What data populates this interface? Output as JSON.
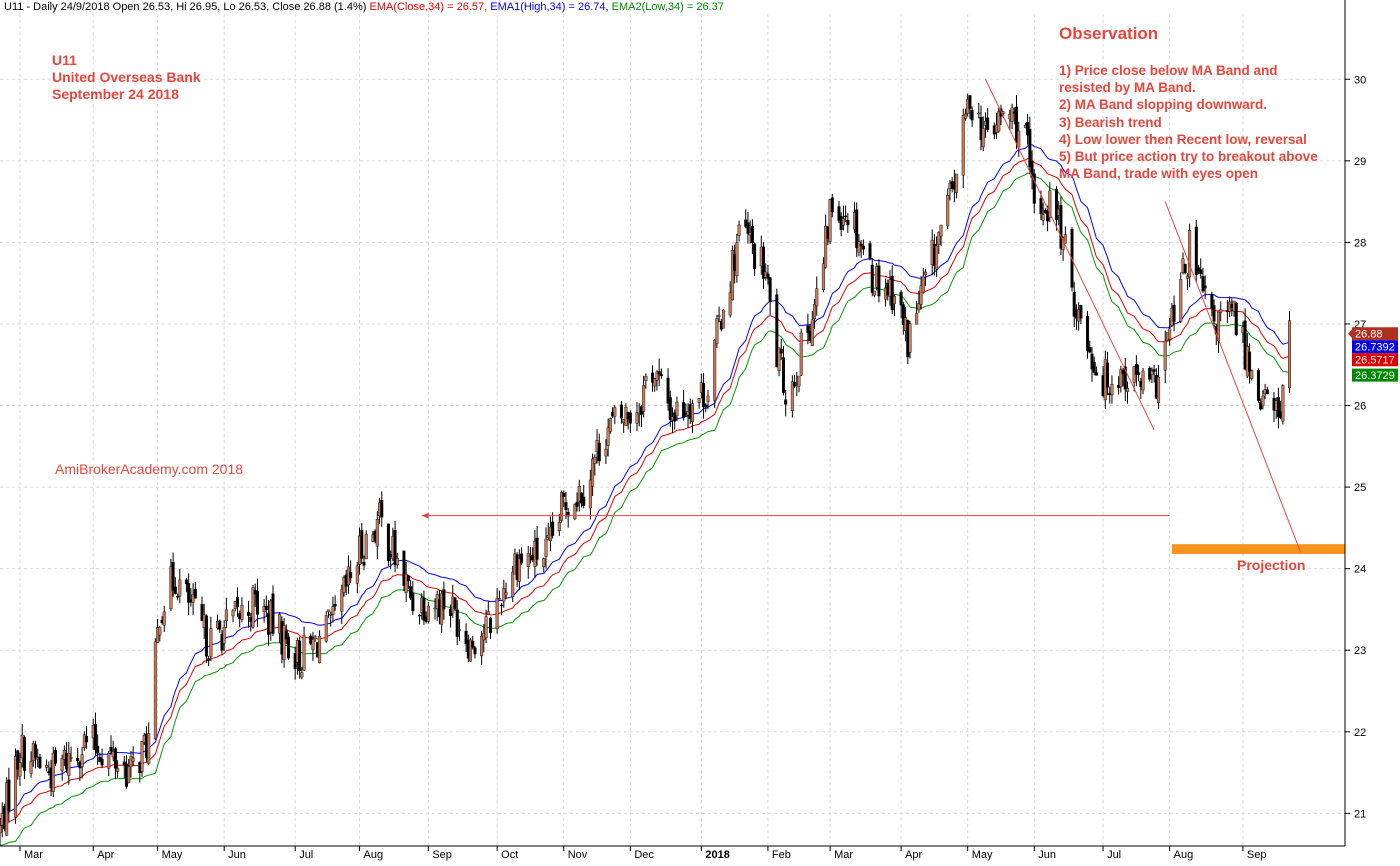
{
  "header": {
    "prefix": "U11 - Daily 24/9/2018 Open 26.53, Hi 26.95, Lo 26.53, Close 26.88 (1.4%)",
    "ema_close": "EMA(Close,34) = 26.57,",
    "ema_high": "EMA1(High,34) = 26.74,",
    "ema_low": "EMA2(Low,34) = 26.37"
  },
  "symbol": {
    "code": "U11",
    "name": "United Overseas Bank",
    "date": "September 24 2018"
  },
  "observation": {
    "title": "Observation",
    "lines": [
      "1) Price close below MA Band and",
      "resisted by MA Band.",
      "2) MA Band slopping downward.",
      "3) Bearish trend",
      "4) Low lower then Recent low, reversal",
      "5) But price action try to breakout above",
      "MA Band, trade with eyes open"
    ]
  },
  "watermark": "AmiBrokerAcademy.com  2018",
  "projection_label": "Projection",
  "colors": {
    "up_candle": "#c87a5a",
    "down_candle": "#000000",
    "ema_close": "#e00000",
    "ema_high": "#0000ff",
    "ema_low": "#009900",
    "annotation": "#e8463c",
    "projection_zone": "#f7941d",
    "grid": "#d8d8d8"
  },
  "chart_data": {
    "type": "candlestick",
    "ylim": [
      20.6,
      30.8
    ],
    "y_ticks": [
      21,
      22,
      23,
      24,
      25,
      26,
      27,
      28,
      29,
      30
    ],
    "x_range": [
      "2017-02-20",
      "2018-10-19"
    ],
    "x_ticks": [
      {
        "label": "Mar",
        "date": "2017-03-01"
      },
      {
        "label": "Apr",
        "date": "2017-04-03"
      },
      {
        "label": "May",
        "date": "2017-05-02"
      },
      {
        "label": "Jun",
        "date": "2017-06-01"
      },
      {
        "label": "Jul",
        "date": "2017-07-03"
      },
      {
        "label": "Aug",
        "date": "2017-08-01"
      },
      {
        "label": "Sep",
        "date": "2017-09-01"
      },
      {
        "label": "Oct",
        "date": "2017-10-02"
      },
      {
        "label": "Nov",
        "date": "2017-11-01"
      },
      {
        "label": "Dec",
        "date": "2017-12-01"
      },
      {
        "label": "2018",
        "date": "2018-01-02"
      },
      {
        "label": "Feb",
        "date": "2018-02-01"
      },
      {
        "label": "Mar",
        "date": "2018-03-01"
      },
      {
        "label": "Apr",
        "date": "2018-04-02"
      },
      {
        "label": "May",
        "date": "2018-05-02"
      },
      {
        "label": "Jun",
        "date": "2018-06-01"
      },
      {
        "label": "Jul",
        "date": "2018-07-02"
      },
      {
        "label": "Aug",
        "date": "2018-08-01"
      },
      {
        "label": "Sep",
        "date": "2018-09-03"
      }
    ],
    "close_path": [
      [
        "2017-02-20",
        20.8
      ],
      [
        "2017-03-01",
        21.8
      ],
      [
        "2017-03-15",
        21.5
      ],
      [
        "2017-04-01",
        21.9
      ],
      [
        "2017-04-20",
        21.5
      ],
      [
        "2017-04-28",
        21.9
      ],
      [
        "2017-05-03",
        23.5
      ],
      [
        "2017-05-10",
        23.9
      ],
      [
        "2017-05-25",
        23.1
      ],
      [
        "2017-06-15",
        23.6
      ],
      [
        "2017-07-05",
        22.9
      ],
      [
        "2017-07-20",
        23.3
      ],
      [
        "2017-08-01",
        24.2
      ],
      [
        "2017-08-10",
        24.6
      ],
      [
        "2017-08-25",
        23.6
      ],
      [
        "2017-09-10",
        23.6
      ],
      [
        "2017-09-20",
        23.1
      ],
      [
        "2017-09-28",
        23.3
      ],
      [
        "2017-10-10",
        24.1
      ],
      [
        "2017-10-25",
        24.2
      ],
      [
        "2017-11-01",
        24.8
      ],
      [
        "2017-11-10",
        25.0
      ],
      [
        "2017-11-20",
        25.7
      ],
      [
        "2017-12-05",
        26.0
      ],
      [
        "2017-12-10",
        26.5
      ],
      [
        "2017-12-20",
        25.9
      ],
      [
        "2018-01-05",
        26.2
      ],
      [
        "2018-01-10",
        27.0
      ],
      [
        "2018-01-20",
        28.2
      ],
      [
        "2018-01-31",
        27.6
      ],
      [
        "2018-02-05",
        26.6
      ],
      [
        "2018-02-10",
        26.1
      ],
      [
        "2018-02-25",
        27.5
      ],
      [
        "2018-03-01",
        28.4
      ],
      [
        "2018-03-10",
        28.4
      ],
      [
        "2018-03-20",
        27.6
      ],
      [
        "2018-03-30",
        27.4
      ],
      [
        "2018-04-05",
        26.8
      ],
      [
        "2018-04-15",
        27.7
      ],
      [
        "2018-04-25",
        28.6
      ],
      [
        "2018-05-03",
        29.8
      ],
      [
        "2018-05-10",
        29.3
      ],
      [
        "2018-05-20",
        29.6
      ],
      [
        "2018-05-28",
        29.3
      ],
      [
        "2018-06-01",
        28.4
      ],
      [
        "2018-06-10",
        28.5
      ],
      [
        "2018-06-20",
        27.2
      ],
      [
        "2018-07-01",
        26.3
      ],
      [
        "2018-07-10",
        26.4
      ],
      [
        "2018-07-25",
        26.2
      ],
      [
        "2018-08-01",
        26.9
      ],
      [
        "2018-08-10",
        27.9
      ],
      [
        "2018-08-20",
        27.0
      ],
      [
        "2018-08-30",
        27.1
      ],
      [
        "2018-09-10",
        26.2
      ],
      [
        "2018-09-17",
        25.9
      ],
      [
        "2018-09-20",
        26.0
      ],
      [
        "2018-09-24",
        26.88
      ]
    ],
    "last_values": [
      {
        "label": "26.88",
        "value": 26.88,
        "color": "#b03020"
      },
      {
        "label": "26.7392",
        "value": 26.7392,
        "color": "#0000ee"
      },
      {
        "label": "26.5717",
        "value": 26.5717,
        "color": "#e00000"
      },
      {
        "label": "26.3729",
        "value": 26.3729,
        "color": "#008800"
      }
    ],
    "annotations": {
      "support_arrow": {
        "from": [
          "2018-08-01",
          24.65
        ],
        "to": [
          "2017-08-29",
          24.65
        ]
      },
      "projection_zone": {
        "from": "2018-08-02",
        "to": "2018-10-19",
        "low": 24.18,
        "high": 24.3
      },
      "trend_lines": [
        {
          "from": [
            "2018-05-10",
            30.0
          ],
          "to": [
            "2018-07-25",
            25.7
          ]
        },
        {
          "from": [
            "2018-07-30",
            28.5
          ],
          "to": [
            "2018-09-29",
            24.2
          ]
        }
      ]
    }
  }
}
